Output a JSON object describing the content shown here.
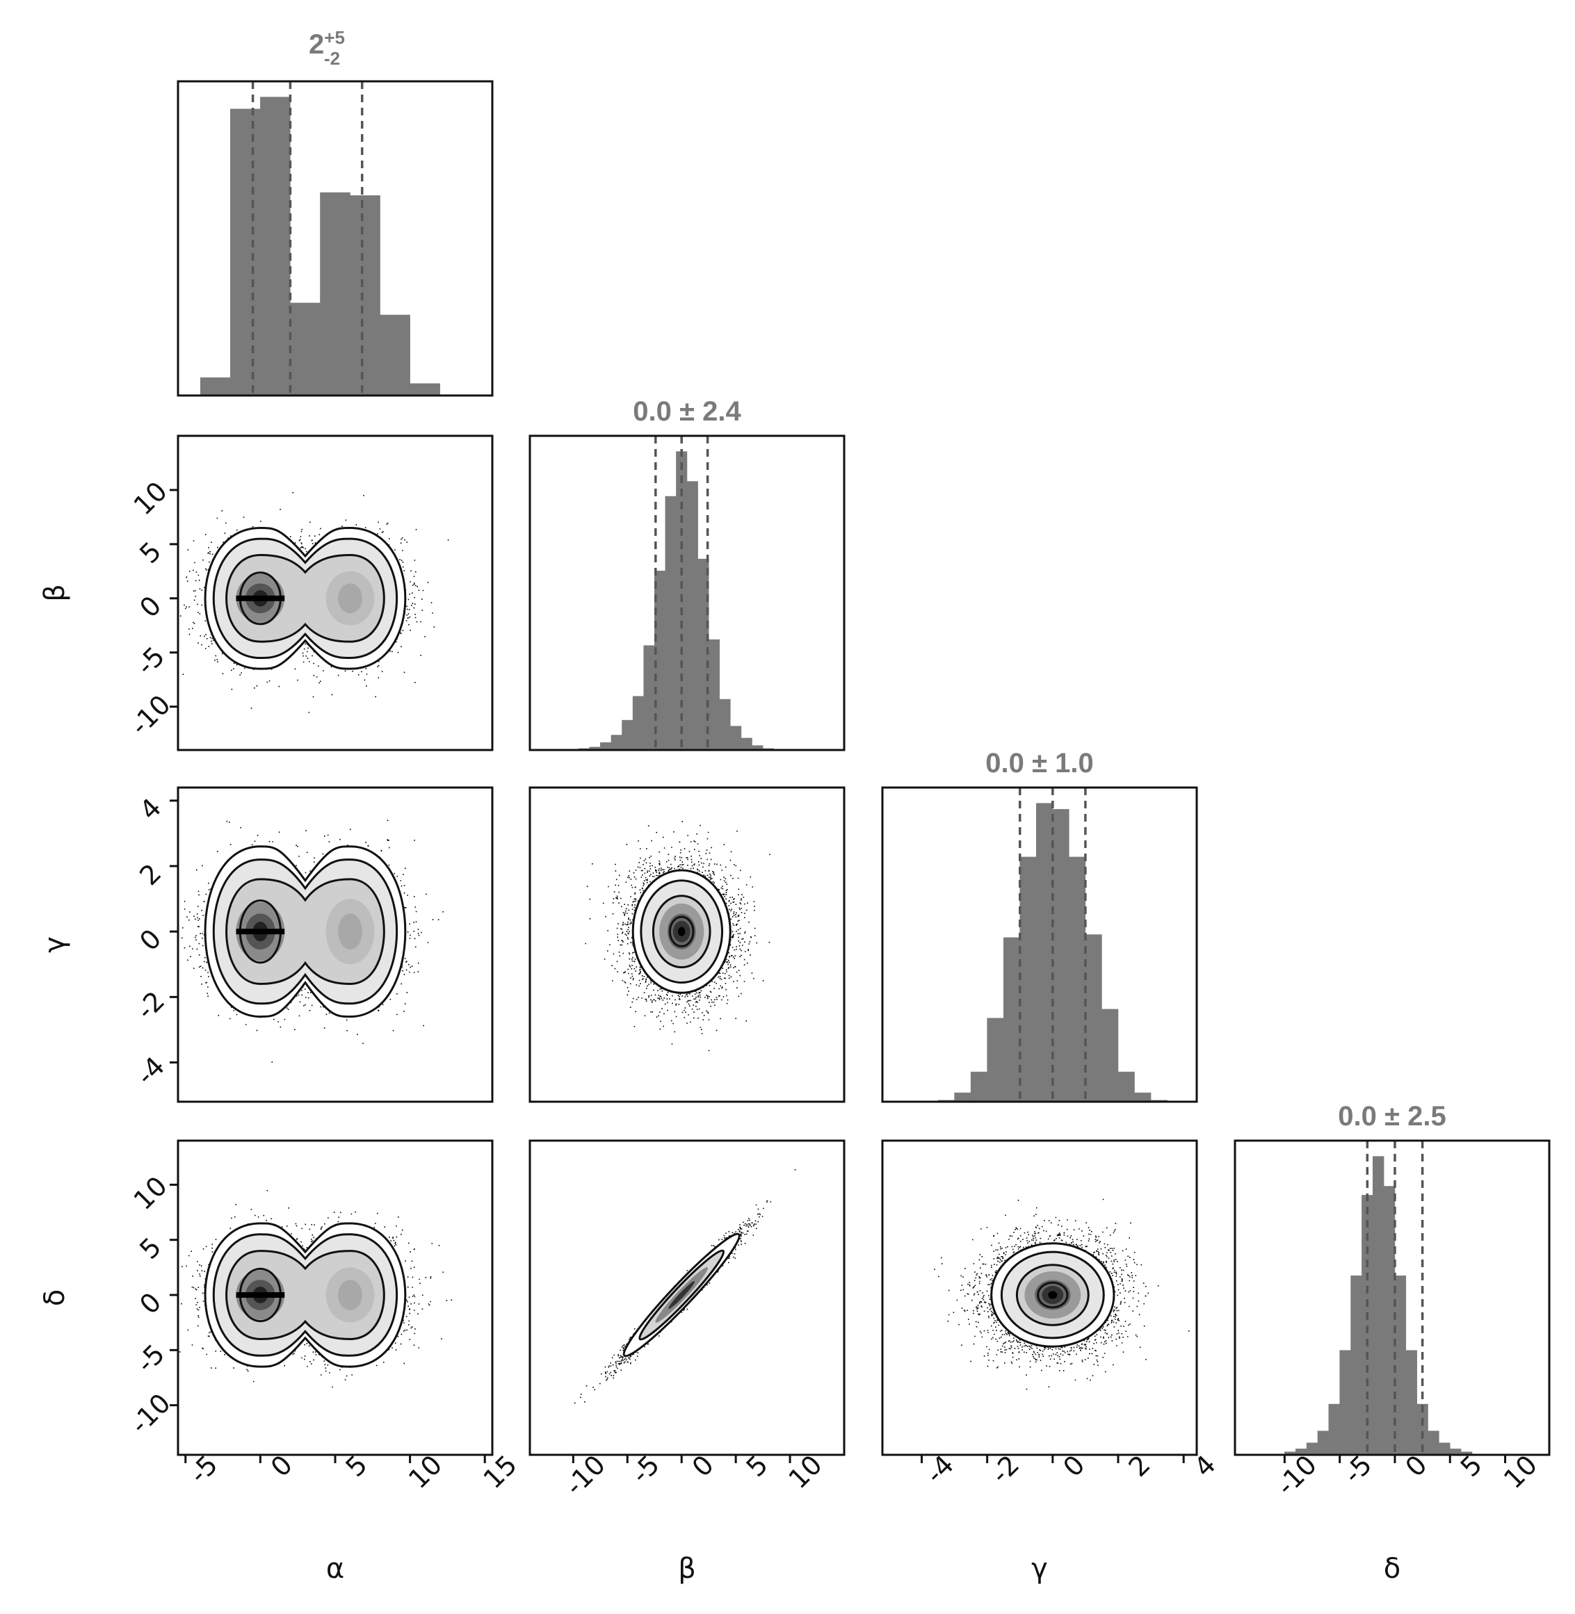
{
  "chart_data": {
    "type": "corner",
    "parameters": [
      {
        "label": "α",
        "xlim": [
          -5.5,
          15.5
        ],
        "ticks": [
          -5,
          0,
          5,
          10,
          15
        ],
        "title": "2",
        "title_sup": "+5",
        "title_sub": "-2",
        "quantiles": [
          -0.5,
          2.0,
          6.8
        ],
        "hist": {
          "start": -4,
          "step": 2,
          "counts": [
            0.06,
            0.96,
            1.0,
            0.31,
            0.68,
            0.67,
            0.27,
            0.04
          ]
        }
      },
      {
        "label": "β",
        "xlim": [
          -14,
          15
        ],
        "ticks": [
          -10,
          -5,
          0,
          5,
          10
        ],
        "title": "0.0 ± 2.4",
        "quantiles": [
          -2.4,
          0.0,
          2.4
        ],
        "hist": {
          "start": -9.5,
          "step": 1,
          "counts": [
            0.005,
            0.01,
            0.025,
            0.05,
            0.1,
            0.18,
            0.35,
            0.6,
            0.85,
            1.0,
            0.9,
            0.64,
            0.37,
            0.17,
            0.08,
            0.04,
            0.015,
            0.005
          ]
        }
      },
      {
        "label": "γ",
        "xlim": [
          -5.2,
          4.4
        ],
        "ticks": [
          -4,
          -2,
          0,
          2,
          4
        ],
        "title": "0.0 ± 1.0",
        "quantiles": [
          -1.0,
          0.0,
          1.0
        ],
        "hist": {
          "start": -3.5,
          "step": 0.5,
          "counts": [
            0.005,
            0.03,
            0.1,
            0.28,
            0.55,
            0.82,
            1.0,
            0.98,
            0.82,
            0.56,
            0.31,
            0.1,
            0.03,
            0.005
          ]
        }
      },
      {
        "label": "δ",
        "xlim": [
          -14.5,
          14
        ],
        "ticks": [
          -10,
          -5,
          0,
          5,
          10
        ],
        "title": "0.0 ± 2.5",
        "quantiles": [
          -2.5,
          0.0,
          2.5
        ],
        "hist": {
          "start": -10,
          "step": 1,
          "counts": [
            0.01,
            0.02,
            0.04,
            0.08,
            0.17,
            0.35,
            0.6,
            0.87,
            1.0,
            0.9,
            0.6,
            0.35,
            0.17,
            0.08,
            0.04,
            0.02,
            0.01
          ]
        }
      }
    ],
    "pairs": [
      {
        "x": 0,
        "y": 1,
        "shape": "bimodal",
        "modes": [
          [
            0,
            0
          ],
          [
            6,
            0
          ]
        ],
        "sx": 1.8,
        "sy": 2.5,
        "rho": 0
      },
      {
        "x": 0,
        "y": 2,
        "shape": "bimodal",
        "modes": [
          [
            0,
            0
          ],
          [
            6,
            0
          ]
        ],
        "sx": 1.8,
        "sy": 1.0,
        "rho": 0
      },
      {
        "x": 1,
        "y": 2,
        "shape": "gauss",
        "center": [
          0,
          0
        ],
        "sx": 2.4,
        "sy": 1.0,
        "rho": 0
      },
      {
        "x": 0,
        "y": 3,
        "shape": "bimodal",
        "modes": [
          [
            0,
            0
          ],
          [
            6,
            0
          ]
        ],
        "sx": 1.8,
        "sy": 2.5,
        "rho": 0
      },
      {
        "x": 1,
        "y": 3,
        "shape": "gauss",
        "center": [
          0,
          0
        ],
        "sx": 2.4,
        "sy": 2.5,
        "rho": 0.98
      },
      {
        "x": 2,
        "y": 3,
        "shape": "gauss",
        "center": [
          0,
          0
        ],
        "sx": 1.0,
        "sy": 2.5,
        "rho": 0
      }
    ]
  }
}
